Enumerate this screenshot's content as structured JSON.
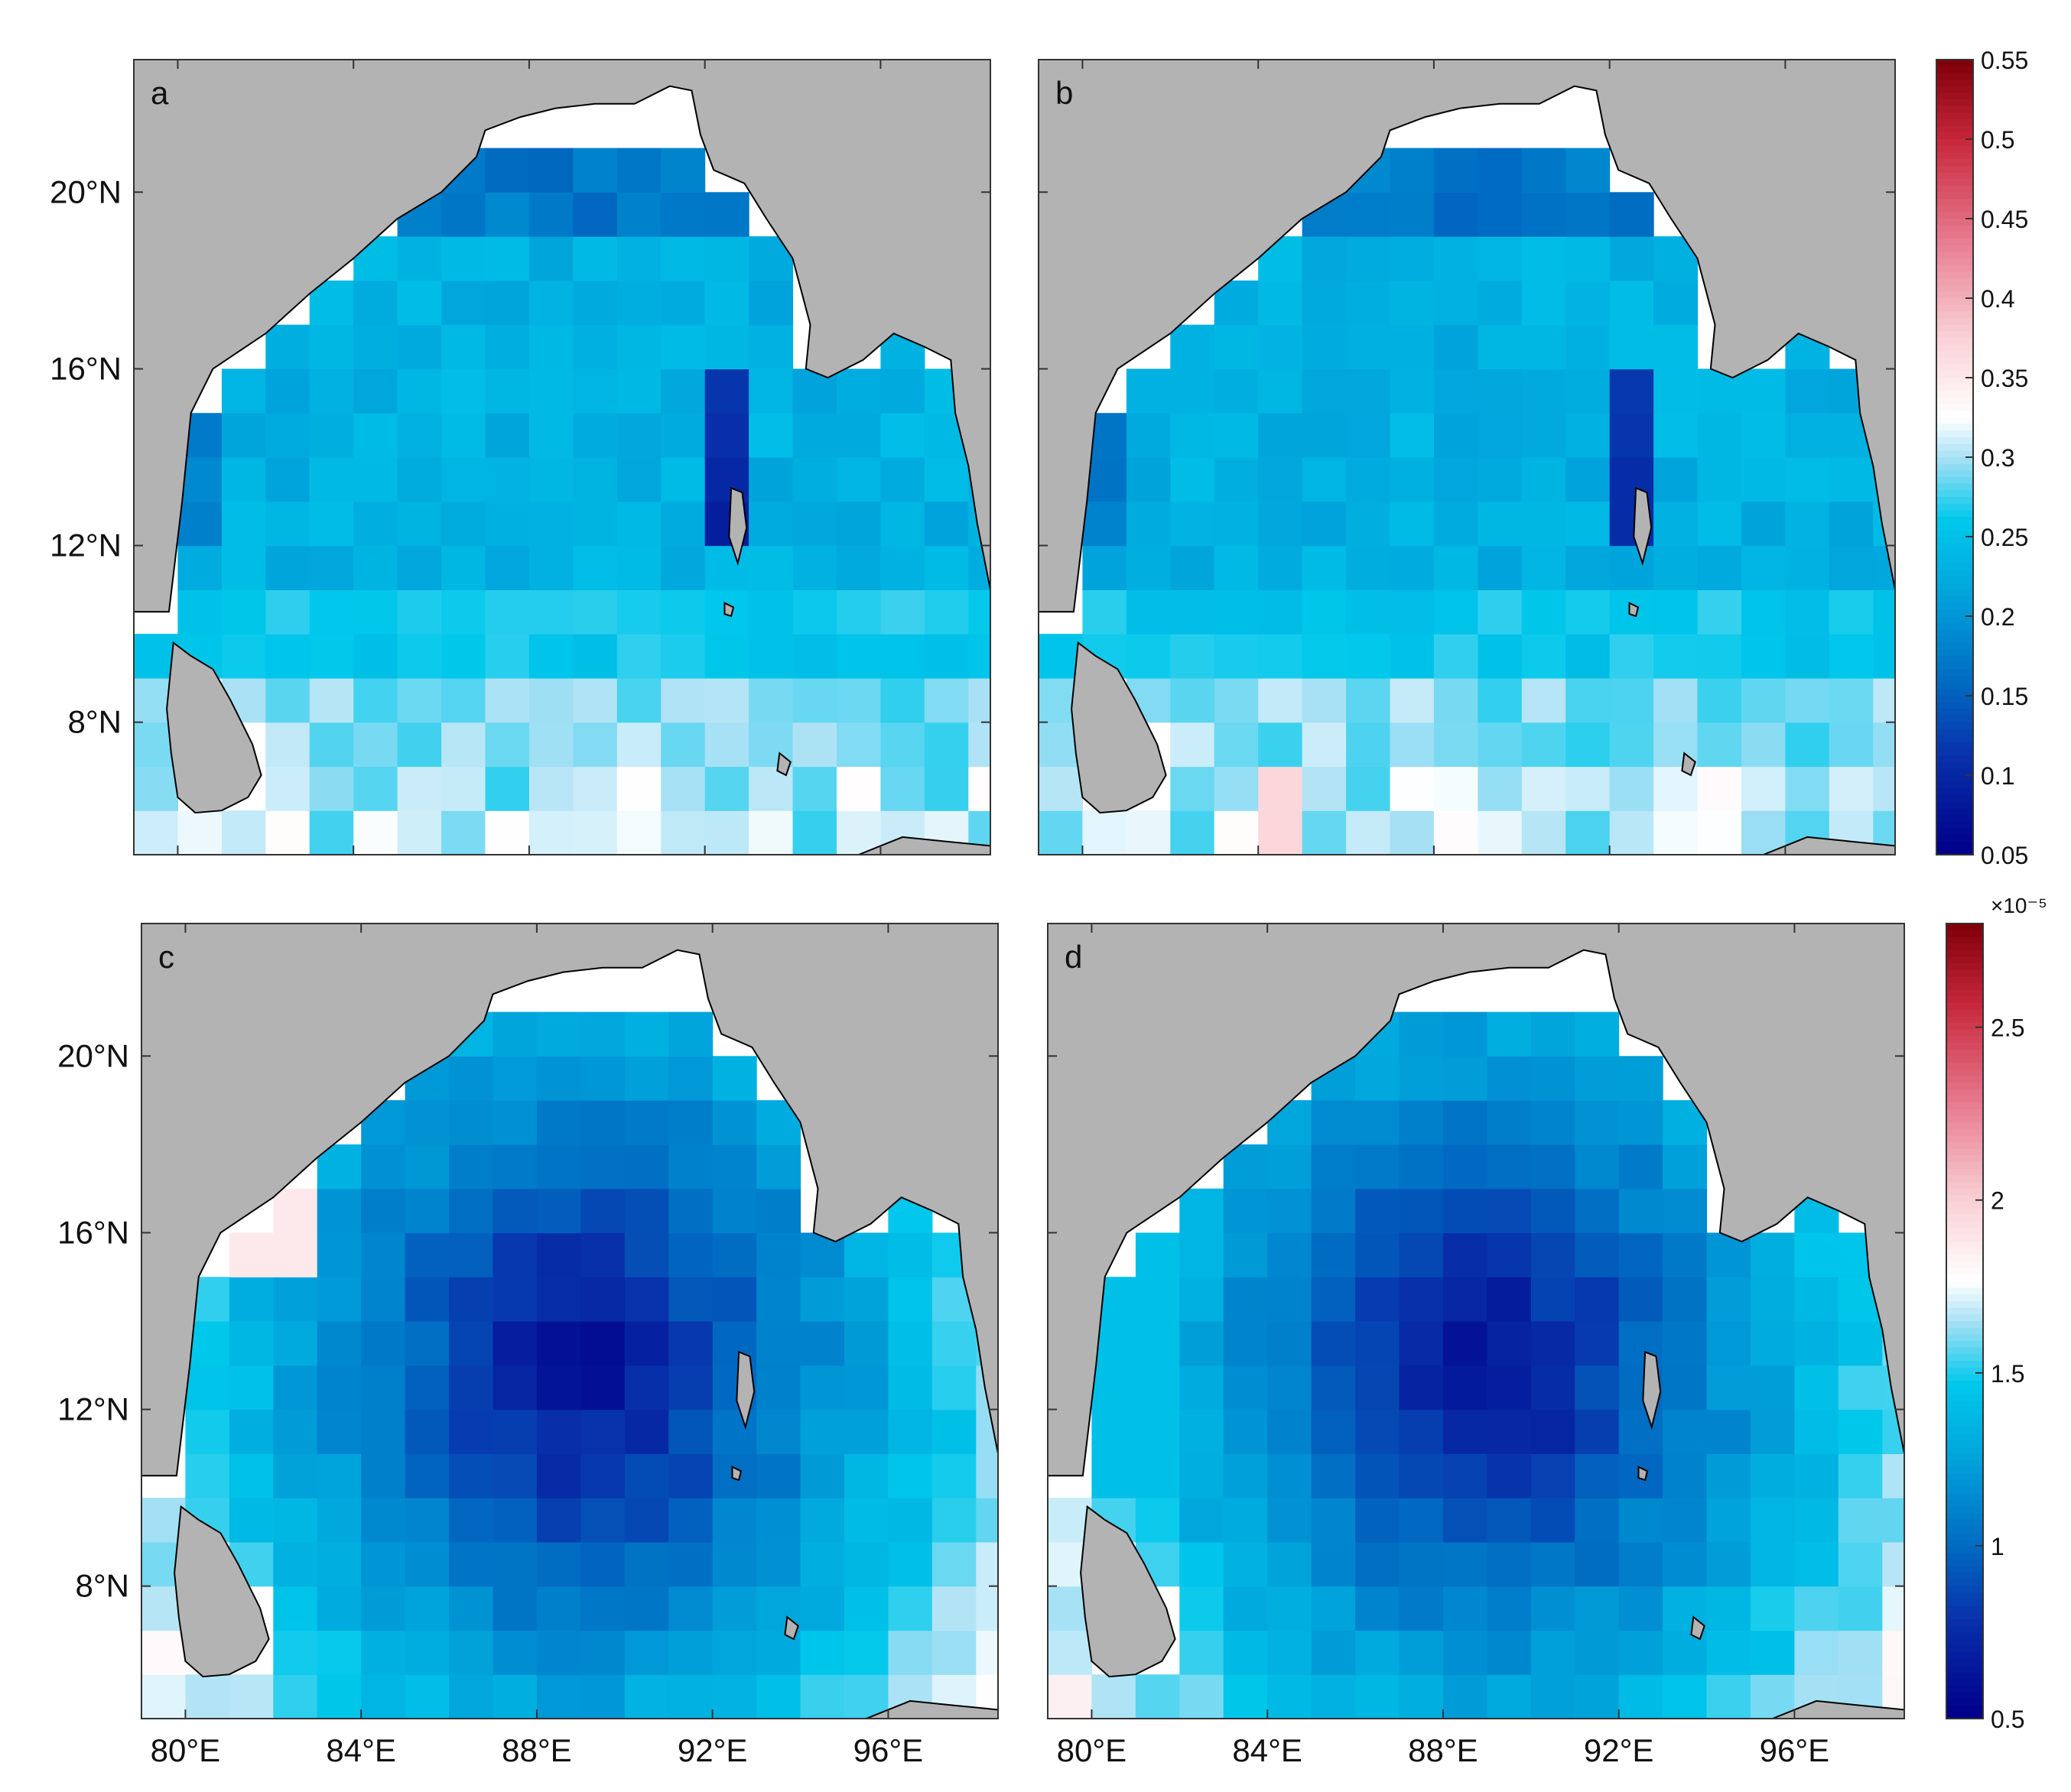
{
  "chart_data": {
    "type": "heatmap",
    "panels": [
      {
        "label": "a",
        "colorbar": "top"
      },
      {
        "label": "b",
        "colorbar": "top"
      },
      {
        "label": "c",
        "colorbar": "bottom"
      },
      {
        "label": "d",
        "colorbar": "bottom"
      }
    ],
    "lat_tick_labels": [
      "20°N",
      "16°N",
      "12°N",
      "8°N"
    ],
    "lat_tick_values": [
      20,
      16,
      12,
      8
    ],
    "lon_tick_labels": [
      "80°E",
      "84°E",
      "88°E",
      "92°E",
      "96°E"
    ],
    "lon_tick_values": [
      80,
      84,
      88,
      92,
      96
    ],
    "extent": {
      "lon_min": 79,
      "lon_max": 98.5,
      "lat_min": 5,
      "lat_max": 23
    },
    "colorbars": [
      {
        "id": "top",
        "min": 0.05,
        "max": 0.55,
        "ticks": [
          0.55,
          0.5,
          0.45,
          0.4,
          0.35,
          0.3,
          0.25,
          0.2,
          0.15,
          0.1,
          0.05
        ],
        "tick_labels": [
          "0.55",
          "0.5",
          "0.45",
          "0.4",
          "0.35",
          "0.3",
          "0.25",
          "0.2",
          "0.15",
          "0.1",
          "0.05"
        ],
        "exponent": ""
      },
      {
        "id": "bottom",
        "min": 0.5,
        "max": 2.8,
        "ticks": [
          2.5,
          2,
          1.5,
          1,
          0.5
        ],
        "tick_labels": [
          "2.5",
          "2",
          "1.5",
          "1",
          "0.5"
        ],
        "exponent": "×10⁻⁵"
      }
    ],
    "colors": {
      "land": "#b3b3b3",
      "coast": "#000000",
      "frame": "#333333"
    }
  }
}
